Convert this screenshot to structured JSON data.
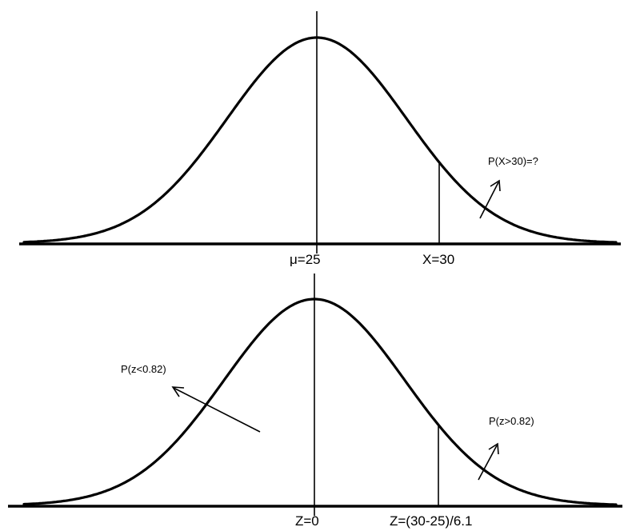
{
  "top": {
    "mean_label": "μ=25",
    "x_label": "X=30",
    "annotation": "P(X>30)=?"
  },
  "bottom": {
    "mean_label": "Z=0",
    "z_label": "Z=(30-25)/6.1",
    "left_annotation": "P(z<0.82)",
    "right_annotation": "P(z>0.82)"
  }
}
